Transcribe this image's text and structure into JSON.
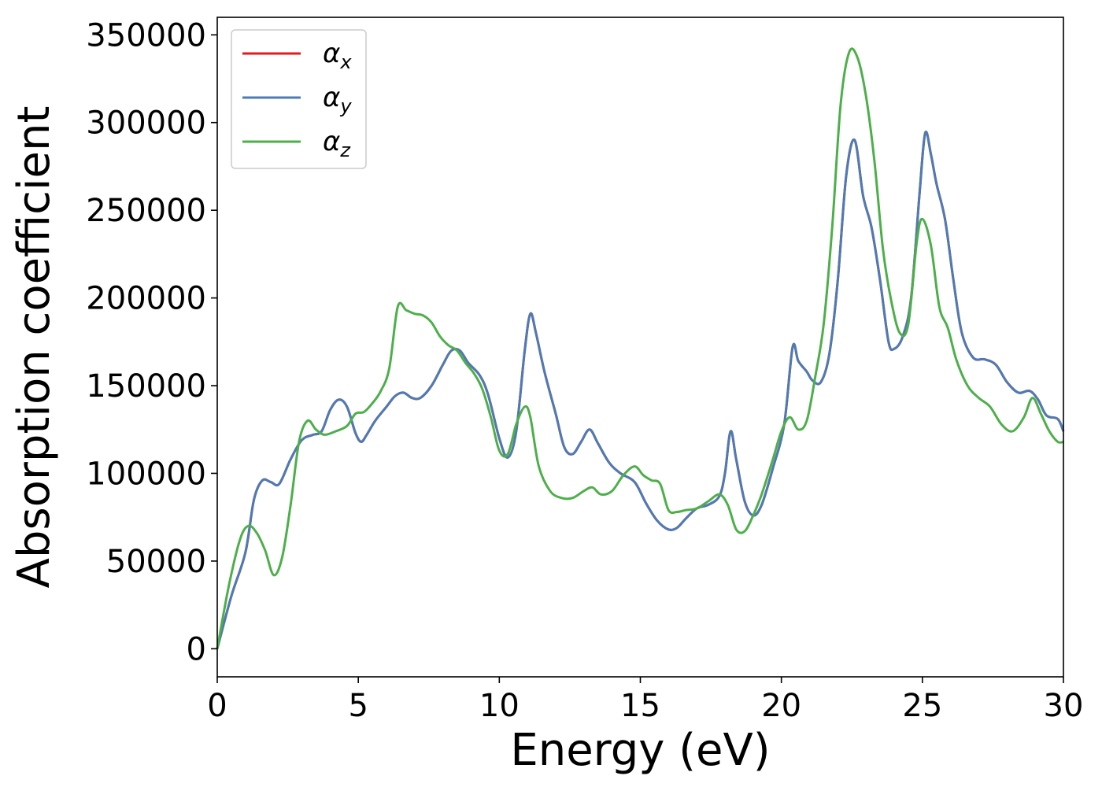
{
  "chart_data": {
    "type": "line",
    "xlabel": "Energy (eV)",
    "ylabel": "Absorption coefficient",
    "xlim": [
      0,
      30
    ],
    "ylim": [
      -16000,
      360000
    ],
    "xticks": [
      0,
      5,
      10,
      15,
      20,
      25,
      30
    ],
    "yticks": [
      0,
      50000,
      100000,
      150000,
      200000,
      250000,
      300000,
      350000
    ],
    "grid": false,
    "legend_position": "top-left",
    "series": [
      {
        "name": "α",
        "sub": "x",
        "color": "#e41a1c",
        "x": [
          0,
          0.5,
          1.0,
          1.3,
          1.6,
          1.9,
          2.2,
          2.6,
          3.0,
          3.4,
          3.7,
          4.0,
          4.3,
          4.6,
          4.9,
          5.1,
          5.3,
          5.6,
          6.0,
          6.3,
          6.6,
          6.9,
          7.2,
          7.6,
          8.0,
          8.3,
          8.6,
          8.9,
          9.3,
          9.6,
          10.0,
          10.3,
          10.6,
          10.9,
          11.1,
          11.3,
          11.6,
          12.0,
          12.3,
          12.6,
          12.9,
          13.2,
          13.5,
          13.9,
          14.3,
          14.8,
          15.2,
          15.6,
          16.0,
          16.3,
          16.6,
          17.0,
          17.4,
          17.8,
          18.0,
          18.2,
          18.4,
          18.7,
          19.0,
          19.3,
          19.7,
          20.1,
          20.4,
          20.6,
          20.9,
          21.1,
          21.4,
          21.7,
          22.0,
          22.3,
          22.6,
          22.9,
          23.2,
          23.5,
          23.8,
          24.0,
          24.3,
          24.6,
          24.9,
          25.1,
          25.3,
          25.5,
          25.8,
          26.1,
          26.4,
          26.8,
          27.2,
          27.6,
          28.0,
          28.4,
          28.8,
          29.1,
          29.4,
          29.8,
          30.0
        ],
        "y": [
          0,
          30000,
          55000,
          85000,
          96000,
          95000,
          94000,
          108000,
          119000,
          122000,
          124000,
          136000,
          142000,
          138000,
          123000,
          118000,
          122000,
          130000,
          138000,
          144000,
          146000,
          143000,
          143000,
          150000,
          162000,
          170000,
          170000,
          163000,
          156000,
          145000,
          120000,
          109000,
          124000,
          170000,
          191000,
          180000,
          158000,
          134000,
          115000,
          111000,
          118000,
          125000,
          117000,
          106000,
          100000,
          95000,
          83000,
          73000,
          68000,
          69000,
          74000,
          80000,
          82000,
          87000,
          100000,
          124000,
          108000,
          84000,
          76000,
          82000,
          103000,
          128000,
          172000,
          164000,
          158000,
          153000,
          152000,
          168000,
          210000,
          270000,
          290000,
          258000,
          240000,
          210000,
          175000,
          171000,
          178000,
          200000,
          260000,
          294000,
          282000,
          265000,
          245000,
          210000,
          180000,
          166000,
          165000,
          162000,
          152000,
          146000,
          147000,
          142000,
          133000,
          131000,
          124000
        ]
      },
      {
        "name": "α",
        "sub": "y",
        "color": "#4c7bb5",
        "x": [
          0,
          0.5,
          1.0,
          1.3,
          1.6,
          1.9,
          2.2,
          2.6,
          3.0,
          3.4,
          3.7,
          4.0,
          4.3,
          4.6,
          4.9,
          5.1,
          5.3,
          5.6,
          6.0,
          6.3,
          6.6,
          6.9,
          7.2,
          7.6,
          8.0,
          8.3,
          8.6,
          8.9,
          9.3,
          9.6,
          10.0,
          10.3,
          10.6,
          10.9,
          11.1,
          11.3,
          11.6,
          12.0,
          12.3,
          12.6,
          12.9,
          13.2,
          13.5,
          13.9,
          14.3,
          14.8,
          15.2,
          15.6,
          16.0,
          16.3,
          16.6,
          17.0,
          17.4,
          17.8,
          18.0,
          18.2,
          18.4,
          18.7,
          19.0,
          19.3,
          19.7,
          20.1,
          20.4,
          20.6,
          20.9,
          21.1,
          21.4,
          21.7,
          22.0,
          22.3,
          22.6,
          22.9,
          23.2,
          23.5,
          23.8,
          24.0,
          24.3,
          24.6,
          24.9,
          25.1,
          25.3,
          25.5,
          25.8,
          26.1,
          26.4,
          26.8,
          27.2,
          27.6,
          28.0,
          28.4,
          28.8,
          29.1,
          29.4,
          29.8,
          30.0
        ],
        "y": [
          0,
          30000,
          55000,
          85000,
          96000,
          95000,
          94000,
          108000,
          119000,
          122000,
          124000,
          136000,
          142000,
          138000,
          123000,
          118000,
          122000,
          130000,
          138000,
          144000,
          146000,
          143000,
          143000,
          150000,
          162000,
          170000,
          170000,
          163000,
          156000,
          145000,
          120000,
          109000,
          124000,
          170000,
          191000,
          180000,
          158000,
          134000,
          115000,
          111000,
          118000,
          125000,
          117000,
          106000,
          100000,
          95000,
          83000,
          73000,
          68000,
          69000,
          74000,
          80000,
          82000,
          87000,
          100000,
          124000,
          108000,
          84000,
          76000,
          82000,
          103000,
          128000,
          172000,
          164000,
          158000,
          153000,
          152000,
          168000,
          210000,
          270000,
          290000,
          258000,
          240000,
          210000,
          175000,
          171000,
          178000,
          200000,
          260000,
          294000,
          282000,
          265000,
          245000,
          210000,
          180000,
          166000,
          165000,
          162000,
          152000,
          146000,
          147000,
          142000,
          133000,
          131000,
          124000
        ]
      },
      {
        "name": "α",
        "sub": "z",
        "color": "#4daf4a",
        "x": [
          0,
          0.4,
          0.8,
          1.1,
          1.4,
          1.7,
          2.0,
          2.3,
          2.6,
          2.9,
          3.2,
          3.5,
          3.8,
          4.2,
          4.6,
          4.9,
          5.2,
          5.5,
          5.8,
          6.1,
          6.4,
          6.7,
          7.0,
          7.3,
          7.6,
          7.9,
          8.2,
          8.5,
          8.8,
          9.1,
          9.4,
          9.7,
          10.0,
          10.3,
          10.6,
          10.9,
          11.1,
          11.4,
          11.8,
          12.2,
          12.6,
          13.0,
          13.3,
          13.6,
          14.0,
          14.4,
          14.8,
          15.1,
          15.4,
          15.7,
          16.0,
          16.3,
          16.6,
          17.0,
          17.4,
          17.8,
          18.1,
          18.4,
          18.7,
          19.0,
          19.3,
          19.7,
          20.0,
          20.3,
          20.6,
          20.9,
          21.2,
          21.5,
          21.8,
          22.1,
          22.4,
          22.7,
          23.0,
          23.3,
          23.6,
          23.9,
          24.2,
          24.5,
          24.8,
          25.0,
          25.3,
          25.6,
          25.9,
          26.2,
          26.6,
          27.0,
          27.4,
          27.8,
          28.2,
          28.6,
          28.9,
          29.2,
          29.5,
          29.8,
          30.0
        ],
        "y": [
          0,
          35000,
          62000,
          70000,
          66000,
          56000,
          42000,
          52000,
          82000,
          118000,
          130000,
          125000,
          122000,
          124000,
          127000,
          134000,
          135000,
          140000,
          147000,
          160000,
          195000,
          193000,
          191000,
          190000,
          186000,
          178000,
          173000,
          170000,
          163000,
          157000,
          148000,
          132000,
          113000,
          111000,
          128000,
          138000,
          132000,
          104000,
          90000,
          86000,
          86000,
          90000,
          92000,
          88000,
          90000,
          99000,
          104000,
          99000,
          96000,
          94000,
          79000,
          78000,
          79000,
          80000,
          84000,
          88000,
          82000,
          68000,
          67000,
          76000,
          88000,
          108000,
          124000,
          132000,
          125000,
          130000,
          155000,
          185000,
          240000,
          310000,
          340000,
          337000,
          315000,
          278000,
          228000,
          198000,
          180000,
          185000,
          232000,
          245000,
          230000,
          195000,
          183000,
          165000,
          150000,
          143000,
          138000,
          128000,
          124000,
          132000,
          143000,
          134000,
          124000,
          118000,
          118000
        ]
      }
    ]
  }
}
